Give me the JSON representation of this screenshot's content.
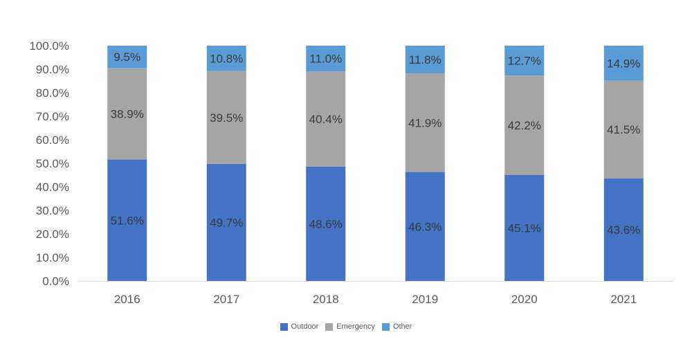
{
  "chart_data": {
    "type": "bar",
    "stacked": true,
    "categories": [
      "2016",
      "2017",
      "2018",
      "2019",
      "2020",
      "2021"
    ],
    "series": [
      {
        "name": "Outdoor",
        "color": "#4472C4",
        "values": [
          51.6,
          49.7,
          48.6,
          46.3,
          45.1,
          43.6
        ],
        "labels": [
          "51.6%",
          "49.7%",
          "48.6%",
          "46.3%",
          "45.1%",
          "43.6%"
        ]
      },
      {
        "name": "Emergency",
        "color": "#A5A5A5",
        "values": [
          38.9,
          39.5,
          40.4,
          41.9,
          42.2,
          41.5
        ],
        "labels": [
          "38.9%",
          "39.5%",
          "40.4%",
          "41.9%",
          "42.2%",
          "41.5%"
        ]
      },
      {
        "name": "Other",
        "color": "#5B9BD5",
        "values": [
          9.5,
          10.8,
          11.0,
          11.8,
          12.7,
          14.9
        ],
        "labels": [
          "9.5%",
          "10.8%",
          "11.0%",
          "11.8%",
          "12.7%",
          "14.9%"
        ]
      }
    ],
    "yticks": [
      "0.0%",
      "10.0%",
      "20.0%",
      "30.0%",
      "40.0%",
      "50.0%",
      "60.0%",
      "70.0%",
      "80.0%",
      "90.0%",
      "100.0%"
    ],
    "ylim": [
      0,
      100
    ],
    "grid": false,
    "legend_position": "bottom",
    "title": "",
    "xlabel": "",
    "ylabel": ""
  }
}
